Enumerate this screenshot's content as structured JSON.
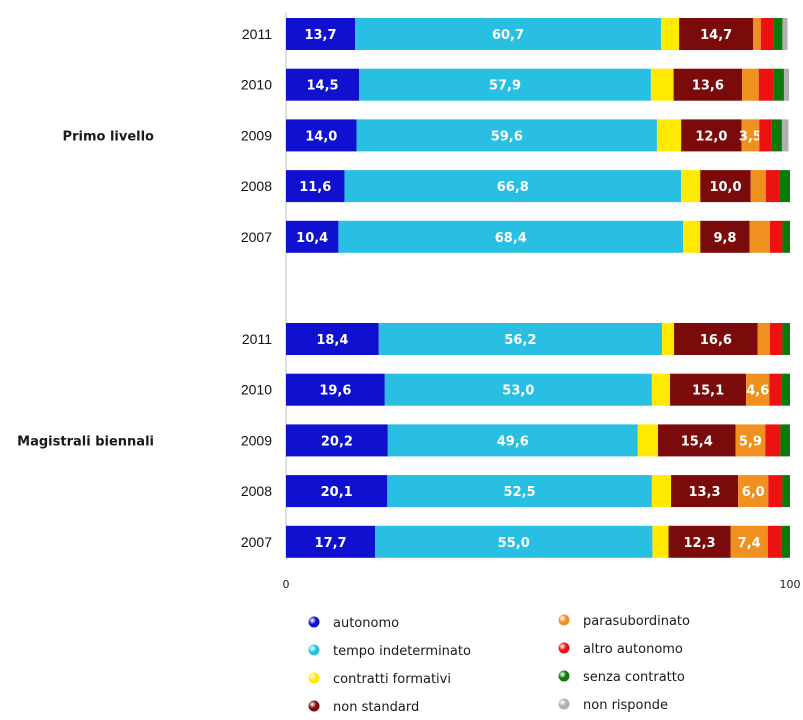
{
  "chart_data": {
    "type": "bar",
    "orientation": "horizontal",
    "stacked": true,
    "xlim": [
      0,
      100
    ],
    "x_ticks": [
      "0",
      "100"
    ],
    "grid": false,
    "legend_position": "bottom",
    "series": [
      {
        "key": "autonomo",
        "name": "autonomo",
        "color": "#1010d0"
      },
      {
        "key": "tempo",
        "name": "tempo indeterminato",
        "color": "#29bfe3"
      },
      {
        "key": "formativi",
        "name": "contratti formativi",
        "color": "#ffea00"
      },
      {
        "key": "nonstd",
        "name": "non standard",
        "color": "#7b0b0b"
      },
      {
        "key": "parasub",
        "name": "parasubordinato",
        "color": "#f0901e"
      },
      {
        "key": "altro",
        "name": "altro autonomo",
        "color": "#ee1111"
      },
      {
        "key": "senza",
        "name": "senza contratto",
        "color": "#0a7a0a"
      },
      {
        "key": "nonrisp",
        "name": "non risponde",
        "color": "#b0b0b0"
      }
    ],
    "groups": [
      {
        "label": "Primo livello",
        "rows": [
          {
            "year": "2011",
            "values": [
              13.7,
              60.7,
              3.6,
              14.7,
              1.5,
              2.6,
              1.7,
              1.0
            ],
            "labels": [
              "13,7",
              "60,7",
              "",
              "14,7",
              "",
              "",
              "",
              ""
            ]
          },
          {
            "year": "2010",
            "values": [
              14.5,
              57.9,
              4.5,
              13.6,
              3.3,
              3.0,
              2.0,
              1.0
            ],
            "labels": [
              "14,5",
              "57,9",
              "",
              "13,6",
              "",
              "",
              "",
              ""
            ]
          },
          {
            "year": "2009",
            "values": [
              14.0,
              59.6,
              4.8,
              12.0,
              3.5,
              2.5,
              2.0,
              1.3
            ],
            "labels": [
              "14,0",
              "59,6",
              "",
              "12,0",
              "3,5",
              "",
              "",
              ""
            ]
          },
          {
            "year": "2008",
            "values": [
              11.6,
              66.8,
              3.8,
              10.0,
              3.0,
              2.8,
              2.0,
              0.0
            ],
            "labels": [
              "11,6",
              "66,8",
              "",
              "10,0",
              "",
              "",
              "",
              ""
            ]
          },
          {
            "year": "2007",
            "values": [
              10.4,
              68.4,
              3.4,
              9.8,
              4.0,
              2.5,
              1.5,
              0.0
            ],
            "labels": [
              "10,4",
              "68,4",
              "",
              "9,8",
              "",
              "",
              "",
              ""
            ]
          }
        ]
      },
      {
        "label": "Magistrali biennali",
        "rows": [
          {
            "year": "2011",
            "values": [
              18.4,
              56.2,
              2.4,
              16.6,
              2.4,
              2.5,
              1.5,
              0.0
            ],
            "labels": [
              "18,4",
              "56,2",
              "",
              "16,6",
              "",
              "",
              "",
              ""
            ]
          },
          {
            "year": "2010",
            "values": [
              19.6,
              53.0,
              3.6,
              15.1,
              4.6,
              2.5,
              1.6,
              0.0
            ],
            "labels": [
              "19,6",
              "53,0",
              "",
              "15,1",
              "4,6",
              "",
              "",
              ""
            ]
          },
          {
            "year": "2009",
            "values": [
              20.2,
              49.6,
              4.0,
              15.4,
              5.9,
              3.0,
              1.9,
              0.0
            ],
            "labels": [
              "20,2",
              "49,6",
              "",
              "15,4",
              "5,9",
              "",
              "",
              ""
            ]
          },
          {
            "year": "2008",
            "values": [
              20.1,
              52.5,
              3.8,
              13.3,
              6.0,
              2.8,
              1.5,
              0.0
            ],
            "labels": [
              "20,1",
              "52,5",
              "",
              "13,3",
              "6,0",
              "",
              "",
              ""
            ]
          },
          {
            "year": "2007",
            "values": [
              17.7,
              55.0,
              3.2,
              12.3,
              7.4,
              2.8,
              1.6,
              0.0
            ],
            "labels": [
              "17,7",
              "55,0",
              "",
              "12,3",
              "7,4",
              "",
              "",
              ""
            ]
          }
        ]
      }
    ]
  }
}
